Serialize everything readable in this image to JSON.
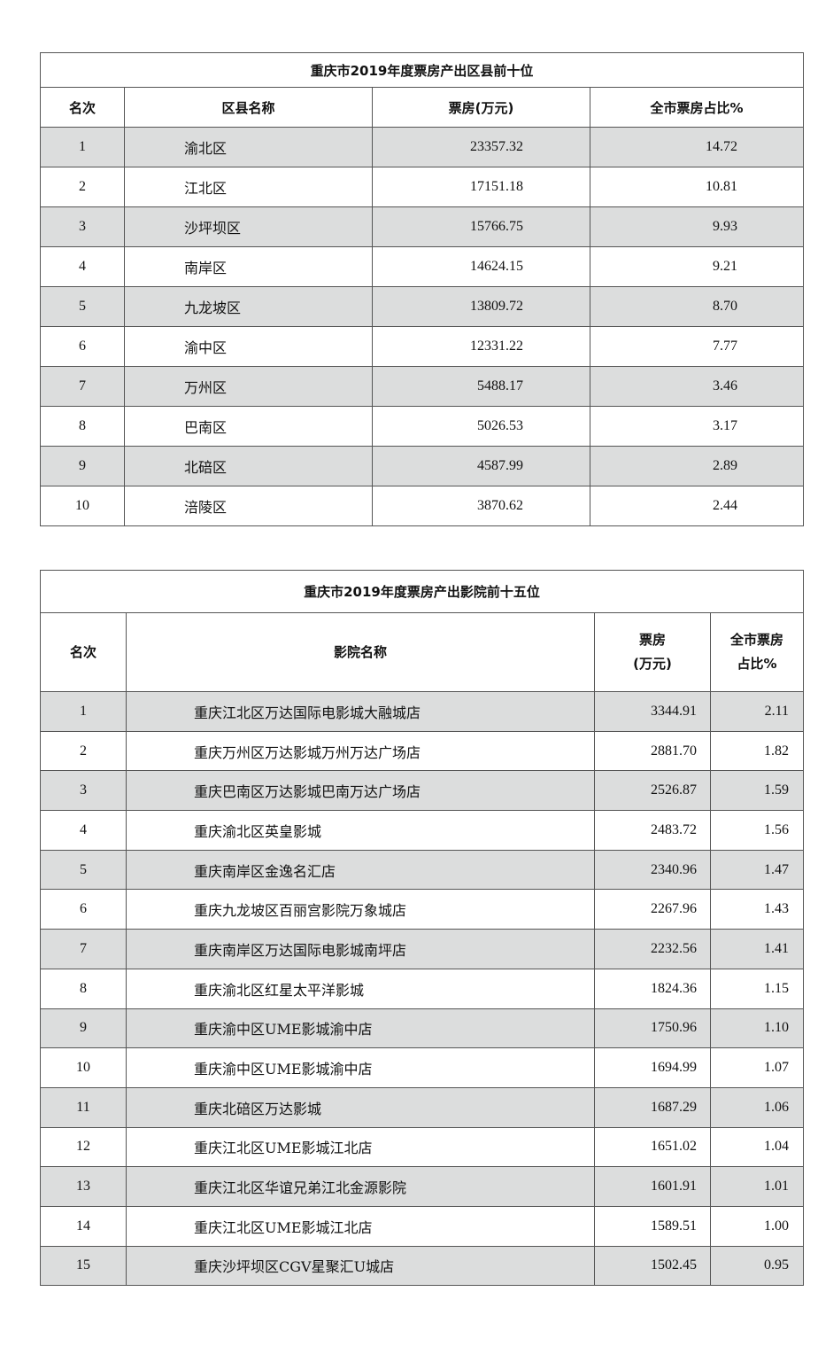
{
  "district_table": {
    "title": "重庆市2019年度票房产出区县前十位",
    "headers": [
      "名次",
      "区县名称",
      "票房(万元)",
      "全市票房占比%"
    ],
    "rows": [
      [
        "1",
        "渝北区",
        "23357.32",
        "14.72"
      ],
      [
        "2",
        "江北区",
        "17151.18",
        "10.81"
      ],
      [
        "3",
        "沙坪坝区",
        "15766.75",
        "9.93"
      ],
      [
        "4",
        "南岸区",
        "14624.15",
        "9.21"
      ],
      [
        "5",
        "九龙坡区",
        "13809.72",
        "8.70"
      ],
      [
        "6",
        "渝中区",
        "12331.22",
        "7.77"
      ],
      [
        "7",
        "万州区",
        "5488.17",
        "3.46"
      ],
      [
        "8",
        "巴南区",
        "5026.53",
        "3.17"
      ],
      [
        "9",
        "北碚区",
        "4587.99",
        "2.89"
      ],
      [
        "10",
        "涪陵区",
        "3870.62",
        "2.44"
      ]
    ]
  },
  "cinema_table": {
    "title": "重庆市2019年度票房产出影院前十五位",
    "headers": [
      "名次",
      "影院名称",
      "票房\n(万元)",
      "全市票房\n占比%"
    ],
    "rows": [
      [
        "1",
        "重庆江北区万达国际电影城大融城店",
        "3344.91",
        "2.11"
      ],
      [
        "2",
        "重庆万州区万达影城万州万达广场店",
        "2881.70",
        "1.82"
      ],
      [
        "3",
        "重庆巴南区万达影城巴南万达广场店",
        "2526.87",
        "1.59"
      ],
      [
        "4",
        "重庆渝北区英皇影城",
        "2483.72",
        "1.56"
      ],
      [
        "5",
        "重庆南岸区金逸名汇店",
        "2340.96",
        "1.47"
      ],
      [
        "6",
        "重庆九龙坡区百丽宫影院万象城店",
        "2267.96",
        "1.43"
      ],
      [
        "7",
        "重庆南岸区万达国际电影城南坪店",
        "2232.56",
        "1.41"
      ],
      [
        "8",
        "重庆渝北区红星太平洋影城",
        "1824.36",
        "1.15"
      ],
      [
        "9",
        "重庆渝中区UME影城渝中店",
        "1750.96",
        "1.10"
      ],
      [
        "10",
        "重庆渝中区UME影城渝中店",
        "1694.99",
        "1.07"
      ],
      [
        "11",
        "重庆北碚区万达影城",
        "1687.29",
        "1.06"
      ],
      [
        "12",
        "重庆江北区UME影城江北店",
        "1651.02",
        "1.04"
      ],
      [
        "13",
        "重庆江北区华谊兄弟江北金源影院",
        "1601.91",
        "1.01"
      ],
      [
        "14",
        "重庆江北区UME影城江北店",
        "1589.51",
        "1.00"
      ],
      [
        "15",
        "重庆沙坪坝区CGV星聚汇U城店",
        "1502.45",
        "0.95"
      ]
    ]
  },
  "colors": {
    "stripe": "#dcdddd",
    "border": "#555555"
  }
}
